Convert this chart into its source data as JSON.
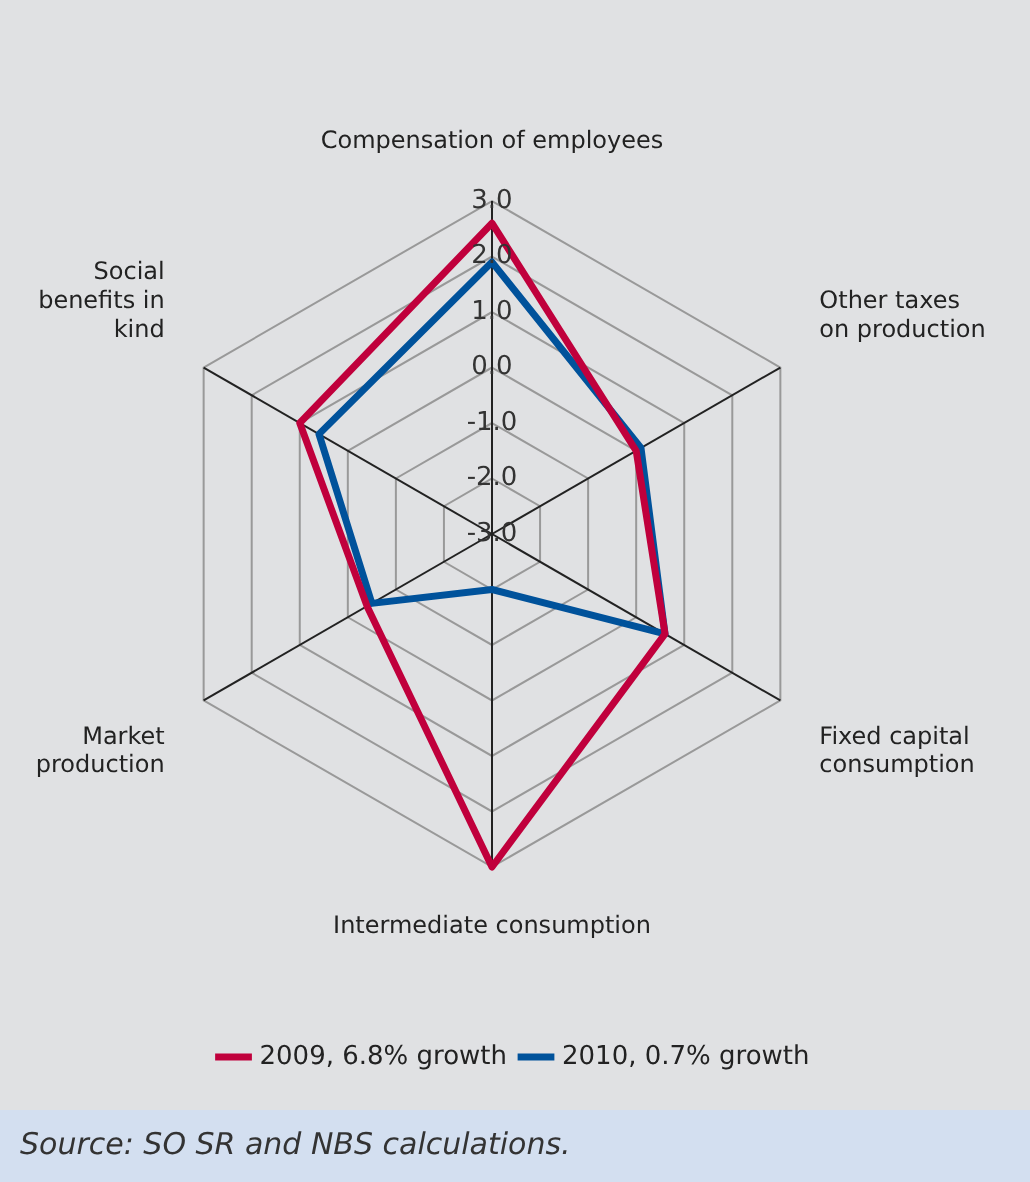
{
  "chart_data": {
    "type": "radar",
    "categories": [
      "Compensation of employees",
      "Other taxes on production",
      "Fixed capital consumption",
      "Intermediate consumption",
      "Market production",
      "Social benefits in kind"
    ],
    "series": [
      {
        "name": "2009, 6.8% growth",
        "color": "#c0003c",
        "values": [
          2.6,
          0.0,
          0.6,
          3.0,
          -0.4,
          1.0
        ]
      },
      {
        "name": "2010, 0.7% growth",
        "color": "#00529b",
        "values": [
          1.9,
          0.1,
          0.6,
          -2.0,
          -0.5,
          0.6
        ]
      }
    ],
    "ylim": [
      -3,
      3
    ],
    "yticks": [
      {
        "value": -3,
        "label": "-3.0"
      },
      {
        "value": -2,
        "label": "-2.0"
      },
      {
        "value": -1,
        "label": "-1.0"
      },
      {
        "value": 0,
        "label": "0.0"
      },
      {
        "value": 1,
        "label": "1.0"
      },
      {
        "value": 2,
        "label": "2.0"
      },
      {
        "value": 3,
        "label": "3.0"
      }
    ],
    "grid": true,
    "legend": "bottom",
    "marker": "none",
    "line_style": "solid",
    "annotations": [
      "Source: SO SR and NBS calculations."
    ]
  }
}
